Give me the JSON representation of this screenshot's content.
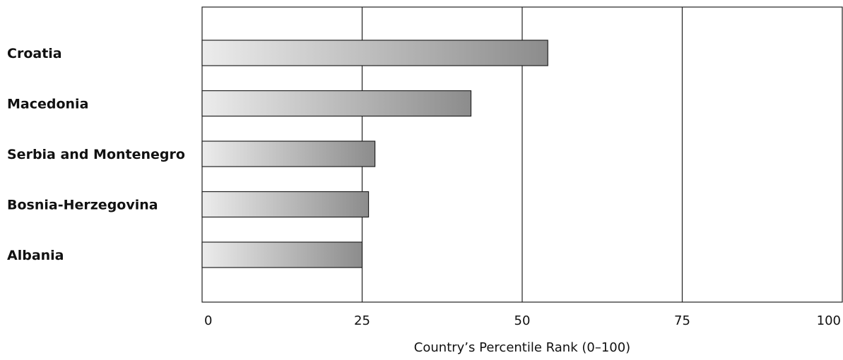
{
  "chart_data": {
    "type": "bar",
    "orientation": "horizontal",
    "categories": [
      "Croatia",
      "Macedonia",
      "Serbia and Montenegro",
      "Bosnia-Herzegovina",
      "Albania"
    ],
    "values": [
      54,
      42,
      27,
      26,
      25
    ],
    "xlim": [
      0,
      100
    ],
    "xticks": [
      "0",
      "25",
      "50",
      "75",
      "100"
    ],
    "xlabel": "Country’s Percentile Rank (0–100)",
    "ylabel": "",
    "title": "",
    "grid": "vertical",
    "bar_fill": {
      "start": "#ececec",
      "end": "#8c8c8c"
    },
    "bar_stroke": "#222222"
  }
}
